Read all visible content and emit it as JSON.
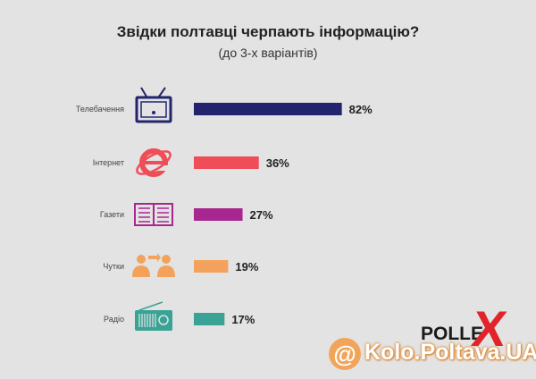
{
  "chart_data": {
    "type": "bar",
    "orientation": "horizontal",
    "title": "Звідки полтавці черпають інформацію?",
    "subtitle": "(до 3-х варіантів)",
    "categories": [
      "Телебачення",
      "Інтернет",
      "Газети",
      "Чутки",
      "Радіо"
    ],
    "values": [
      82,
      36,
      27,
      19,
      17
    ],
    "value_labels": [
      "82%",
      "36%",
      "27%",
      "19%",
      "17%"
    ],
    "icons": [
      "tv-icon",
      "internet-explorer-icon",
      "newspaper-icon",
      "people-chat-icon",
      "radio-icon"
    ],
    "colors": [
      "#22246e",
      "#ef4d57",
      "#a8268f",
      "#f4a25b",
      "#3aa396"
    ],
    "unit": "%",
    "xlim": [
      0,
      100
    ],
    "grid": false,
    "legend": "none"
  },
  "branding": {
    "logo_text": "POLLE",
    "logo_x": "X",
    "watermark_at": "@",
    "watermark_text": "Kolo.Poltava.UA"
  }
}
